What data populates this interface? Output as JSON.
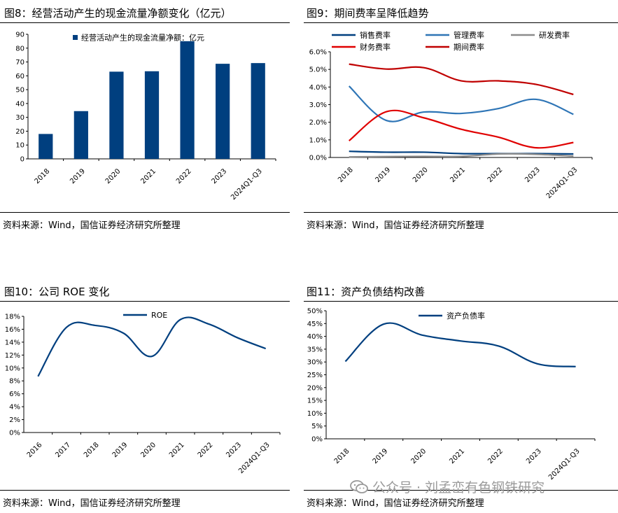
{
  "panels": [
    {
      "id": "fig8",
      "title": "图8：经营活动产生的现金流量净额变化（亿元）",
      "source": "资料来源：Wind，国信证券经济研究所整理"
    },
    {
      "id": "fig9",
      "title": "图9：期间费率呈降低趋势",
      "source": "资料来源：Wind，国信证券经济研究所整理"
    },
    {
      "id": "fig10",
      "title": "图10：公司 ROE 变化",
      "source": "资料来源：Wind，国信证券经济研究所整理"
    },
    {
      "id": "fig11",
      "title": "图11：资产负债结构改善",
      "source": "资料来源：Wind，国信证券经济研究所整理"
    }
  ],
  "watermark": {
    "text": "公众号 · 刘孟峦有色钢铁研究",
    "icon": "wechat-icon",
    "color": "#9a9a9a"
  },
  "chart_data": [
    {
      "id": "fig8",
      "type": "bar",
      "categories": [
        "2018",
        "2019",
        "2020",
        "2021",
        "2022",
        "2023",
        "2024Q1-Q3"
      ],
      "series": [
        {
          "name": "经营活动产生的现金流量净额：亿元",
          "values": [
            18,
            34.5,
            63,
            63.3,
            85,
            68.7,
            69.2
          ],
          "color": "#003f7f"
        }
      ],
      "ylim": [
        0,
        90
      ],
      "yticks": [
        0,
        10,
        20,
        30,
        40,
        50,
        60,
        70,
        80,
        90
      ],
      "legend_position": "top-left",
      "grid": false
    },
    {
      "id": "fig9",
      "type": "line",
      "categories": [
        "2018",
        "2019",
        "2020",
        "2021",
        "2022",
        "2023",
        "2024Q1-Q3"
      ],
      "series": [
        {
          "name": "销售费率",
          "values": [
            0.35,
            0.3,
            0.3,
            0.22,
            0.22,
            0.22,
            0.2
          ],
          "color": "#003f7f"
        },
        {
          "name": "管理费率",
          "values": [
            4.05,
            2.1,
            2.58,
            2.5,
            2.78,
            3.3,
            2.45
          ],
          "color": "#2e75b6"
        },
        {
          "name": "研发费率",
          "values": [
            0.03,
            0.05,
            0.06,
            0.06,
            0.2,
            0.18,
            0.08
          ],
          "color": "#8c8c8c"
        },
        {
          "name": "财务费率",
          "values": [
            0.95,
            2.6,
            2.25,
            1.6,
            1.15,
            0.55,
            0.85
          ],
          "color": "#e00000"
        },
        {
          "name": "期间费率",
          "values": [
            5.3,
            5.02,
            5.1,
            4.35,
            4.35,
            4.15,
            3.58
          ],
          "color": "#c00000"
        }
      ],
      "ylim": [
        0,
        6
      ],
      "yticks": [
        "0.0%",
        "1.0%",
        "2.0%",
        "3.0%",
        "4.0%",
        "5.0%",
        "6.0%"
      ],
      "legend_position": "top",
      "grid": false
    },
    {
      "id": "fig10",
      "type": "line",
      "categories": [
        "2016",
        "2017",
        "2018",
        "2019",
        "2020",
        "2021",
        "2022",
        "2023",
        "2024Q1-Q3"
      ],
      "series": [
        {
          "name": "ROE",
          "values": [
            8.7,
            16.3,
            16.6,
            15.4,
            11.8,
            17.5,
            16.8,
            14.7,
            13.0
          ],
          "color": "#003f7f"
        }
      ],
      "ylim": [
        0,
        18
      ],
      "yticks": [
        "0%",
        "2%",
        "4%",
        "6%",
        "8%",
        "10%",
        "12%",
        "14%",
        "16%",
        "18%"
      ],
      "legend_position": "top-center",
      "grid": false
    },
    {
      "id": "fig11",
      "type": "line",
      "categories": [
        "2018",
        "2019",
        "2020",
        "2021",
        "2022",
        "2023",
        "2024Q1-Q3"
      ],
      "series": [
        {
          "name": "资产负债率",
          "values": [
            30.2,
            44.8,
            40.5,
            38.2,
            36.2,
            29.3,
            28.2
          ],
          "color": "#003f7f"
        }
      ],
      "ylim": [
        0,
        50
      ],
      "yticks": [
        "0%",
        "5%",
        "10%",
        "15%",
        "20%",
        "25%",
        "30%",
        "35%",
        "40%",
        "45%",
        "50%"
      ],
      "legend_position": "top-center",
      "grid": false
    }
  ]
}
